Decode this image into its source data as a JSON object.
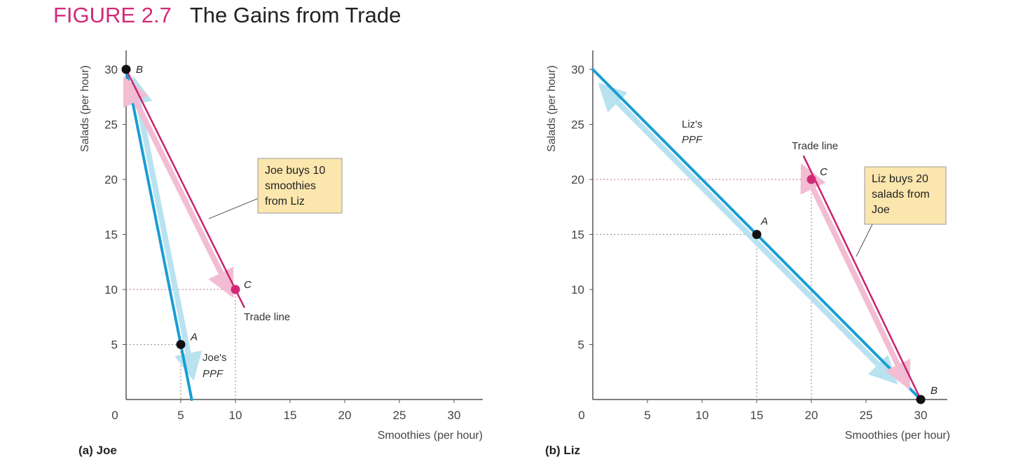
{
  "figure": {
    "label": "FIGURE 2.7",
    "title": "The Gains from Trade"
  },
  "colors": {
    "accent": "#d22a78",
    "ppf": "#1a9ed4",
    "ppf_glow": "#b8e2f0",
    "trade": "#c8246e",
    "trade_glow": "#f2bdd3",
    "callout_bg": "#fbe6ad",
    "axis": "#555555",
    "guide": "#cc88aa"
  },
  "chart_data": [
    {
      "type": "line",
      "panel_label": "(a) Joe",
      "xlabel": "Smoothies (per hour)",
      "ylabel": "Salads (per hour)",
      "xlim": [
        0,
        33
      ],
      "ylim": [
        0,
        32
      ],
      "xticks": [
        "0",
        "5",
        "10",
        "15",
        "20",
        "25",
        "30"
      ],
      "yticks": [
        "5",
        "10",
        "15",
        "20",
        "25",
        "30"
      ],
      "highlight_x": [
        "10"
      ],
      "highlight_y": [
        "10"
      ],
      "series": [
        {
          "name": "Joe's PPF",
          "label_line1": "Joe's",
          "label_line2": "PPF",
          "kind": "ppf",
          "points": [
            [
              0,
              30
            ],
            [
              6,
              0
            ]
          ]
        },
        {
          "name": "Trade line",
          "label_line1": "Trade line",
          "kind": "trade",
          "points": [
            [
              0,
              30
            ],
            [
              10.8,
              8.4
            ]
          ]
        }
      ],
      "points": [
        {
          "label": "B",
          "x": 0,
          "y": 30,
          "accent": false
        },
        {
          "label": "A",
          "x": 5,
          "y": 5,
          "accent": false
        },
        {
          "label": "C",
          "x": 10,
          "y": 10,
          "accent": true
        }
      ],
      "callout": {
        "lines": [
          "Joe buys 10",
          "smoothies",
          "from Liz"
        ]
      }
    },
    {
      "type": "line",
      "panel_label": "(b) Liz",
      "xlabel": "Smoothies (per hour)",
      "ylabel": "Salads (per hour)",
      "xlim": [
        0,
        33
      ],
      "ylim": [
        0,
        32
      ],
      "xticks": [
        "0",
        "5",
        "10",
        "15",
        "20",
        "25",
        "30"
      ],
      "yticks": [
        "5",
        "10",
        "15",
        "20",
        "25",
        "30"
      ],
      "highlight_x": [
        "20"
      ],
      "highlight_y": [
        "20"
      ],
      "series": [
        {
          "name": "Liz's PPF",
          "label_line1": "Liz's",
          "label_line2": "PPF",
          "kind": "ppf",
          "points": [
            [
              0,
              30
            ],
            [
              30,
              0
            ]
          ]
        },
        {
          "name": "Trade line",
          "label_line1": "Trade line",
          "kind": "trade",
          "points": [
            [
              19.3,
              22.1
            ],
            [
              30,
              0
            ]
          ]
        }
      ],
      "points": [
        {
          "label": "A",
          "x": 15,
          "y": 15,
          "accent": false
        },
        {
          "label": "C",
          "x": 20,
          "y": 20,
          "accent": true
        },
        {
          "label": "B",
          "x": 30,
          "y": 0,
          "accent": false
        }
      ],
      "callout": {
        "lines": [
          "Liz buys 20",
          "salads from",
          "Joe"
        ]
      }
    }
  ]
}
